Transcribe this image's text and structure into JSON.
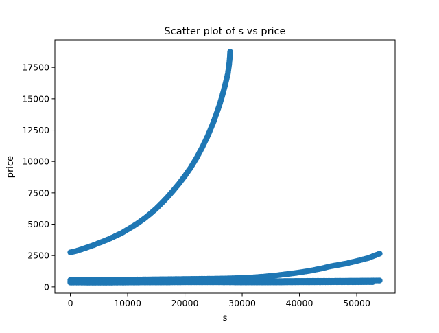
{
  "chart_data": {
    "type": "scatter",
    "title": "Scatter plot of s vs price",
    "xlabel": "s",
    "ylabel": "price",
    "xlim": [
      -2700,
      56700
    ],
    "ylim": [
      -500,
      19700
    ],
    "xticks": [
      0,
      10000,
      20000,
      30000,
      40000,
      50000
    ],
    "xtick_labels": [
      "0",
      "10000",
      "20000",
      "30000",
      "40000",
      "50000"
    ],
    "yticks": [
      0,
      2500,
      5000,
      7500,
      10000,
      12500,
      15000,
      17500
    ],
    "ytick_labels": [
      "0",
      "2500",
      "5000",
      "7500",
      "10000",
      "12500",
      "15000",
      "17500"
    ],
    "grid": false,
    "marker_color": "#1f77b4",
    "series": [
      {
        "points": [
          [
            0,
            2750
          ],
          [
            1000,
            2860
          ],
          [
            2000,
            3000
          ],
          [
            3000,
            3160
          ],
          [
            4000,
            3320
          ],
          [
            5000,
            3500
          ],
          [
            6000,
            3680
          ],
          [
            7000,
            3870
          ],
          [
            8000,
            4090
          ],
          [
            9000,
            4300
          ],
          [
            10000,
            4580
          ],
          [
            11000,
            4850
          ],
          [
            12000,
            5150
          ],
          [
            13000,
            5480
          ],
          [
            14000,
            5850
          ],
          [
            15000,
            6250
          ],
          [
            16000,
            6700
          ],
          [
            17000,
            7180
          ],
          [
            18000,
            7700
          ],
          [
            19000,
            8250
          ],
          [
            20000,
            8850
          ],
          [
            21000,
            9500
          ],
          [
            22000,
            10250
          ],
          [
            23000,
            11100
          ],
          [
            24000,
            12050
          ],
          [
            25000,
            13150
          ],
          [
            26000,
            14450
          ],
          [
            26500,
            15200
          ],
          [
            27000,
            16050
          ],
          [
            27500,
            17000
          ],
          [
            27700,
            17650
          ],
          [
            27850,
            18300
          ],
          [
            27900,
            18750
          ]
        ]
      },
      {
        "points": [
          [
            0,
            550
          ],
          [
            2000,
            560
          ],
          [
            4000,
            565
          ],
          [
            6000,
            570
          ],
          [
            8000,
            575
          ],
          [
            10000,
            580
          ],
          [
            12000,
            590
          ],
          [
            14000,
            600
          ],
          [
            16000,
            610
          ],
          [
            18000,
            620
          ],
          [
            20000,
            630
          ],
          [
            22000,
            640
          ],
          [
            24000,
            650
          ],
          [
            26000,
            660
          ],
          [
            28000,
            680
          ],
          [
            30000,
            710
          ],
          [
            32000,
            760
          ],
          [
            34000,
            830
          ],
          [
            36000,
            920
          ],
          [
            38000,
            1030
          ],
          [
            40000,
            1150
          ],
          [
            42000,
            1300
          ],
          [
            44000,
            1480
          ],
          [
            45000,
            1600
          ],
          [
            46000,
            1690
          ],
          [
            48000,
            1850
          ],
          [
            50000,
            2060
          ],
          [
            52000,
            2300
          ],
          [
            54000,
            2650
          ]
        ]
      },
      {
        "points": [
          [
            0,
            450
          ],
          [
            3000,
            430
          ],
          [
            6000,
            440
          ],
          [
            10000,
            460
          ],
          [
            13000,
            470
          ],
          [
            16000,
            480
          ],
          [
            20000,
            490
          ],
          [
            23000,
            490
          ],
          [
            27000,
            480
          ],
          [
            30000,
            470
          ],
          [
            33000,
            460
          ],
          [
            36000,
            460
          ],
          [
            39000,
            470
          ],
          [
            42000,
            480
          ],
          [
            45000,
            480
          ],
          [
            48000,
            490
          ],
          [
            51000,
            500
          ],
          [
            54000,
            510
          ]
        ]
      },
      {
        "points": [
          [
            0,
            350
          ],
          [
            3300,
            340
          ],
          [
            6600,
            340
          ],
          [
            9900,
            350
          ],
          [
            13200,
            360
          ],
          [
            16500,
            360
          ],
          [
            19800,
            370
          ],
          [
            23100,
            370
          ],
          [
            26400,
            370
          ],
          [
            29700,
            360
          ],
          [
            33000,
            360
          ],
          [
            36300,
            360
          ],
          [
            39600,
            370
          ],
          [
            42900,
            370
          ],
          [
            46200,
            380
          ],
          [
            49500,
            380
          ],
          [
            52800,
            390
          ]
        ]
      }
    ]
  }
}
